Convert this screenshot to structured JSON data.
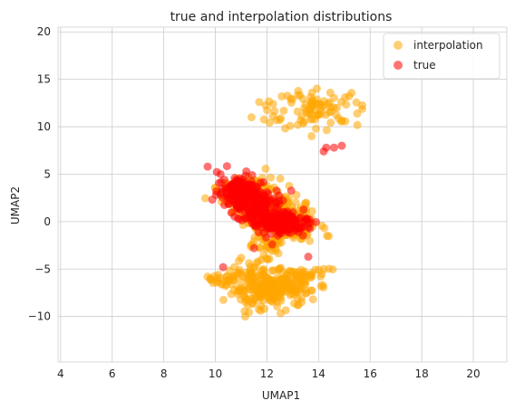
{
  "chart_data": {
    "type": "scatter",
    "title": "true and interpolation distributions",
    "xlabel": "UMAP1",
    "ylabel": "UMAP2",
    "xlim": [
      3.9,
      21.3
    ],
    "ylim": [
      -14.8,
      20.5
    ],
    "xticks": [
      4,
      6,
      8,
      10,
      12,
      14,
      16,
      18,
      20
    ],
    "yticks": [
      -10,
      -5,
      0,
      5,
      10,
      15,
      20
    ],
    "grid": true,
    "legend_position": "top-right",
    "series": [
      {
        "name": "interpolation",
        "color": "#ffa500",
        "alpha": 0.55,
        "clusters": [
          {
            "cx": 11.4,
            "cy": 2.6,
            "sx": 0.55,
            "sy": 1.0,
            "n": 160
          },
          {
            "cx": 12.3,
            "cy": 0.8,
            "sx": 0.6,
            "sy": 1.0,
            "n": 140
          },
          {
            "cx": 12.9,
            "cy": -0.6,
            "sx": 0.55,
            "sy": 0.8,
            "n": 90
          },
          {
            "cx": 12.0,
            "cy": -2.4,
            "sx": 0.45,
            "sy": 0.6,
            "n": 40
          },
          {
            "cx": 12.1,
            "cy": -7.0,
            "sx": 0.8,
            "sy": 1.0,
            "n": 260
          },
          {
            "cx": 10.5,
            "cy": -6.0,
            "sx": 0.5,
            "sy": 0.4,
            "n": 25
          },
          {
            "cx": 13.7,
            "cy": -5.5,
            "sx": 0.5,
            "sy": 0.6,
            "n": 20
          },
          {
            "cx": 14.0,
            "cy": 12.0,
            "sx": 0.8,
            "sy": 0.9,
            "n": 80
          },
          {
            "cx": 12.2,
            "cy": 11.5,
            "sx": 0.3,
            "sy": 0.7,
            "n": 8
          }
        ],
        "points": [
          [
            9.7,
            -5.8
          ],
          [
            9.8,
            -6.1
          ],
          [
            10.1,
            -6.3
          ],
          [
            11.7,
            12.6
          ],
          [
            11.4,
            11.0
          ],
          [
            15.5,
            11.4
          ],
          [
            12.9,
            10.1
          ],
          [
            13.2,
            10.2
          ],
          [
            10.0,
            3.6
          ],
          [
            11.9,
            -9.2
          ],
          [
            10.3,
            -6.6
          ],
          [
            11.6,
            -4.4
          ],
          [
            11.0,
            -3.8
          ],
          [
            14.2,
            -5.0
          ],
          [
            13.5,
            -6.3
          ],
          [
            10.2,
            2.8
          ],
          [
            10.1,
            3.2
          ]
        ]
      },
      {
        "name": "true",
        "color": "#ff0000",
        "alpha": 0.55,
        "clusters": [
          {
            "cx": 10.9,
            "cy": 3.3,
            "sx": 0.4,
            "sy": 0.9,
            "n": 110
          },
          {
            "cx": 11.7,
            "cy": 1.7,
            "sx": 0.5,
            "sy": 0.9,
            "n": 140
          },
          {
            "cx": 12.4,
            "cy": 0.0,
            "sx": 0.55,
            "sy": 0.6,
            "n": 120
          },
          {
            "cx": 13.0,
            "cy": -0.5,
            "sx": 0.4,
            "sy": 0.4,
            "n": 40
          }
        ],
        "points": [
          [
            9.7,
            5.8
          ],
          [
            14.2,
            7.4
          ],
          [
            14.3,
            7.8
          ],
          [
            14.6,
            7.8
          ],
          [
            14.9,
            8.0
          ],
          [
            10.3,
            -4.8
          ],
          [
            11.5,
            -2.8
          ],
          [
            12.2,
            -2.4
          ],
          [
            13.6,
            -3.7
          ],
          [
            10.2,
            5.0
          ],
          [
            11.2,
            5.3
          ]
        ]
      }
    ]
  }
}
